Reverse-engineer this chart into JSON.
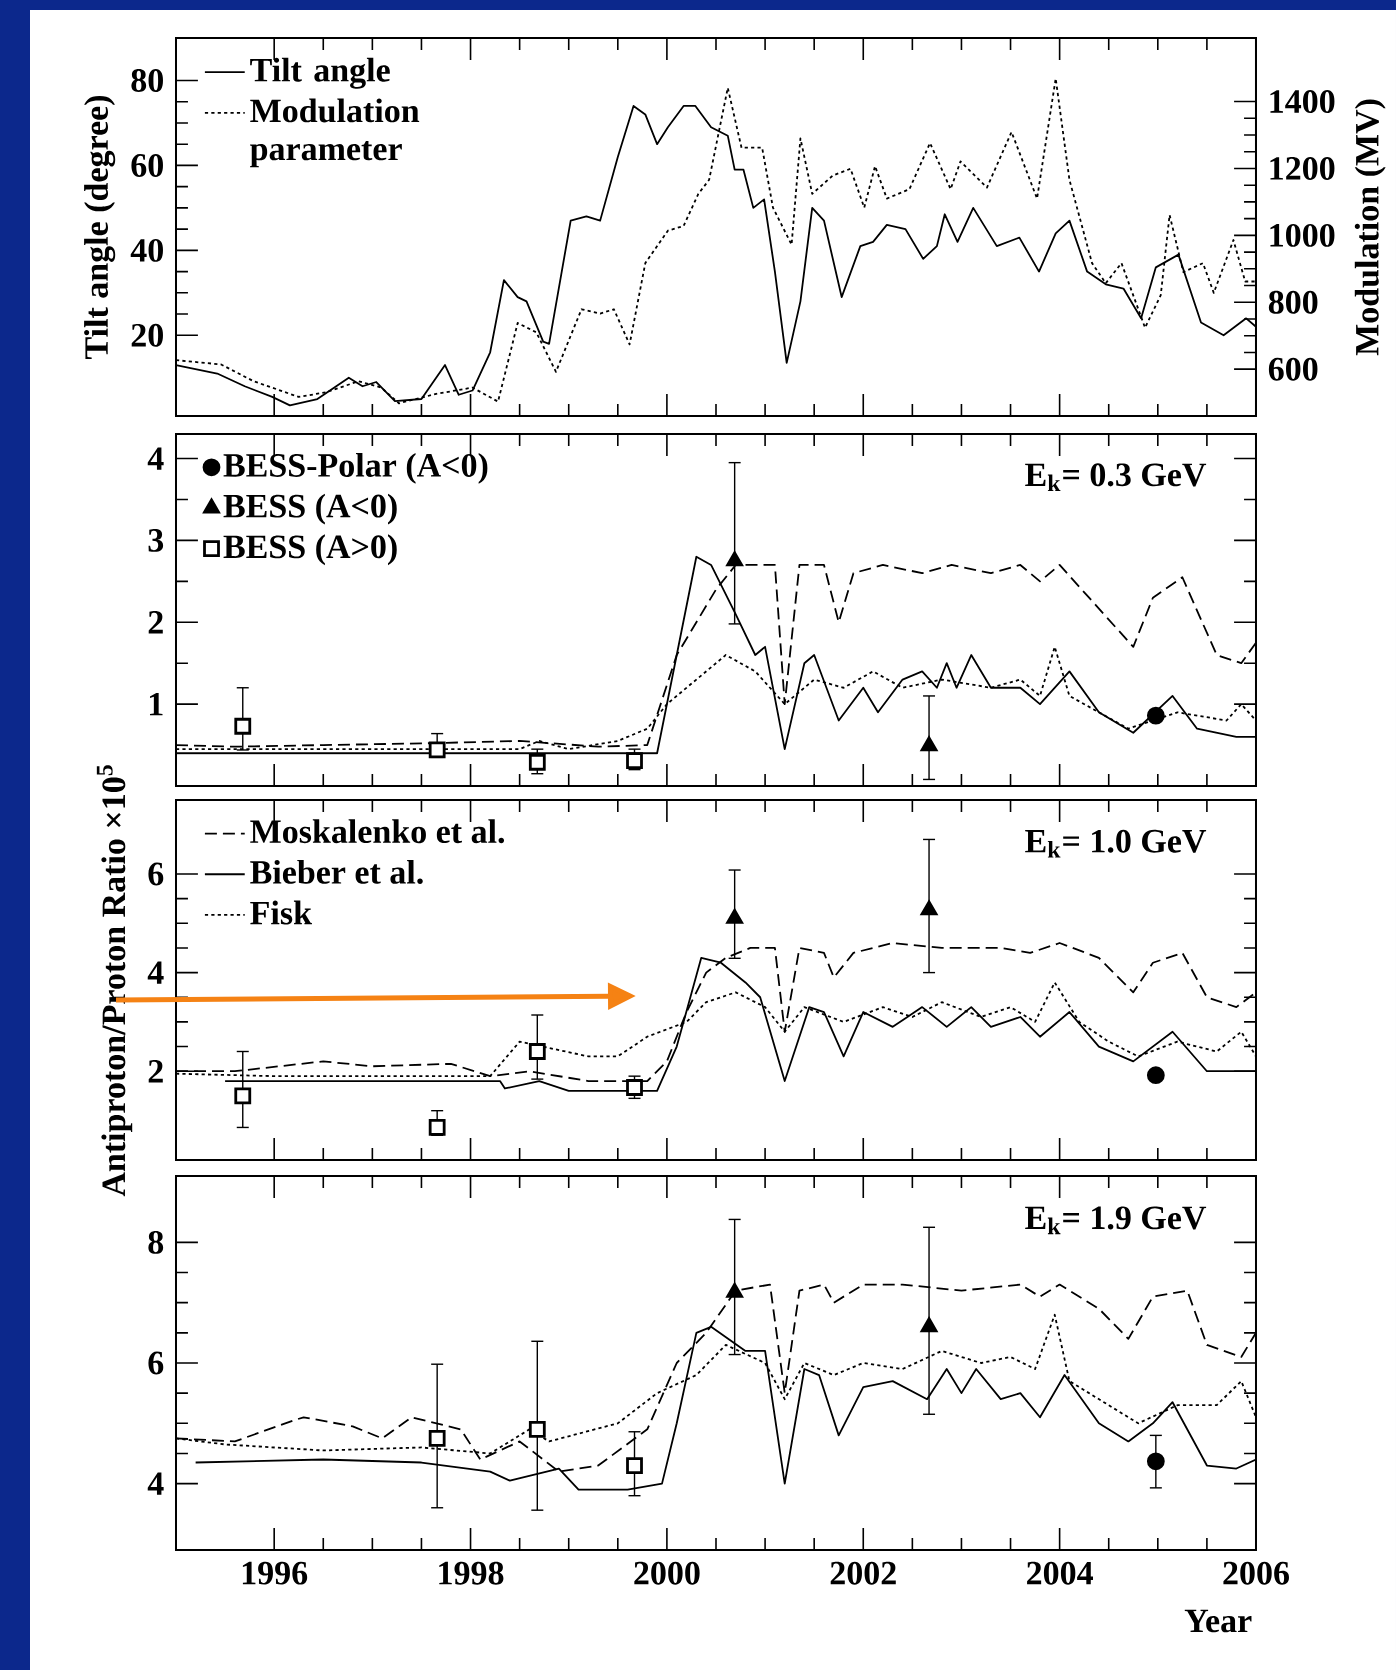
{
  "chart_data": [
    {
      "type": "line",
      "ylabel": "Tilt angle (degree)",
      "y2label": "Modulation (MV)",
      "xlim": [
        1995,
        2006
      ],
      "xticks": [
        1996,
        1998,
        2000,
        2002,
        2004,
        2006
      ],
      "ylim": [
        1,
        90
      ],
      "yticks": [
        20,
        40,
        60,
        80
      ],
      "y2lim": [
        460,
        1590
      ],
      "y2ticks": [
        600,
        800,
        1000,
        1200,
        1400
      ],
      "tick_labels": "y",
      "legend": "top left",
      "series": [
        {
          "name": "Tilt angle",
          "line_style": "solid",
          "color": "#000000",
          "x": [
            1995.0,
            1995.42,
            1995.7,
            1995.98,
            1996.16,
            1996.44,
            1996.76,
            1996.9,
            1997.04,
            1997.23,
            1997.5,
            1997.74,
            1997.88,
            1998.02,
            1998.2,
            1998.34,
            1998.48,
            1998.57,
            1998.74,
            1998.8,
            1999.02,
            1999.18,
            1999.32,
            1999.5,
            1999.66,
            1999.78,
            1999.9,
            2000.01,
            2000.17,
            2000.29,
            2000.45,
            2000.62,
            2000.69,
            2000.78,
            2000.88,
            2000.99,
            2001.1,
            2001.22,
            2001.36,
            2001.48,
            2001.6,
            2001.78,
            2001.97,
            2002.1,
            2002.24,
            2002.43,
            2002.61,
            2002.75,
            2002.83,
            2002.96,
            2003.12,
            2003.36,
            2003.59,
            2003.79,
            2003.96,
            2004.1,
            2004.28,
            2004.47,
            2004.65,
            2004.83,
            2004.98,
            2005.21,
            2005.44,
            2005.67,
            2005.9,
            2006.0
          ],
          "values": [
            13,
            11,
            8,
            5.5,
            3.5,
            5,
            10,
            8,
            9,
            4.5,
            5,
            13,
            6,
            7,
            16,
            33,
            29,
            28,
            18.5,
            18,
            47,
            48,
            47,
            62,
            74,
            72,
            65,
            69,
            74,
            74,
            69,
            67,
            59,
            59,
            50,
            52,
            35,
            13.5,
            28,
            50,
            47,
            29,
            41,
            42,
            46,
            45,
            38,
            41,
            48.5,
            42,
            50,
            41,
            43,
            35,
            44,
            47,
            35,
            32,
            31,
            24,
            36,
            39,
            23,
            20,
            24,
            22
          ]
        },
        {
          "name": "Modulation parameter",
          "axis": "y2",
          "line_style": "dotted",
          "color": "#000000",
          "x": [
            1995.0,
            1995.46,
            1995.79,
            1996.25,
            1996.53,
            1996.86,
            1997.09,
            1997.27,
            1997.65,
            1998.02,
            1998.28,
            1998.48,
            1998.67,
            1998.87,
            1999.13,
            1999.32,
            1999.46,
            1999.62,
            1999.78,
            2000.01,
            2000.17,
            2000.32,
            2000.43,
            2000.62,
            2000.76,
            2000.97,
            2001.08,
            2001.27,
            2001.36,
            2001.48,
            2001.69,
            2001.87,
            2002.01,
            2002.12,
            2002.24,
            2002.47,
            2002.68,
            2002.89,
            2002.99,
            2003.26,
            2003.51,
            2003.77,
            2003.96,
            2004.1,
            2004.33,
            2004.47,
            2004.63,
            2004.87,
            2005.03,
            2005.12,
            2005.26,
            2005.46,
            2005.57,
            2005.77,
            2005.89,
            2006.0
          ],
          "values": [
            627,
            614,
            564,
            517,
            531,
            564,
            545,
            498,
            526,
            545,
            503,
            738,
            710,
            592,
            779,
            766,
            779,
            674,
            917,
            1014,
            1028,
            1124,
            1166,
            1441,
            1262,
            1262,
            1083,
            972,
            1290,
            1124,
            1179,
            1199,
            1083,
            1207,
            1110,
            1138,
            1276,
            1138,
            1221,
            1143,
            1309,
            1110,
            1469,
            1166,
            917,
            857,
            917,
            724,
            821,
            1061,
            890,
            917,
            828,
            986,
            862,
            862
          ]
        }
      ]
    },
    {
      "type": "line",
      "annotations": [
        "E$_{k}$= 0.3 GeV"
      ],
      "xlim": [
        1995,
        2006
      ],
      "xticks": [
        1996,
        1998,
        2000,
        2002,
        2004,
        2006
      ],
      "ylim": [
        0,
        4.3
      ],
      "yticks": [
        1,
        2,
        3,
        4
      ],
      "tick_labels": "y",
      "legend": "top left",
      "series": [
        {
          "line_style": "dashed",
          "color": "#000000",
          "x": [
            1995,
            1995.6,
            1996.5,
            1997.5,
            1998.5,
            1999.3,
            1999.8,
            2000.1,
            2000.5,
            2000.7,
            2001.1,
            2001.2,
            2001.35,
            2001.6,
            2001.75,
            2001.9,
            2002.2,
            2002.6,
            2002.9,
            2003.3,
            2003.6,
            2003.8,
            2004.0,
            2004.3,
            2004.75,
            2004.95,
            2005.25,
            2005.6,
            2005.85,
            2006
          ],
          "values": [
            0.5,
            0.48,
            0.5,
            0.52,
            0.55,
            0.48,
            0.5,
            1.6,
            2.4,
            2.7,
            2.7,
            1.0,
            2.7,
            2.7,
            2.0,
            2.6,
            2.7,
            2.6,
            2.7,
            2.6,
            2.7,
            2.5,
            2.7,
            2.3,
            1.7,
            2.3,
            2.55,
            1.6,
            1.5,
            1.75
          ]
        },
        {
          "line_style": "solid",
          "color": "#000000",
          "x": [
            1995.0,
            1999.9,
            2000.3,
            2000.45,
            2000.7,
            2000.9,
            2001.0,
            2001.2,
            2001.4,
            2001.5,
            2001.75,
            2002.0,
            2002.15,
            2002.4,
            2002.6,
            2002.75,
            2002.85,
            2002.95,
            2003.1,
            2003.3,
            2003.6,
            2003.8,
            2004.1,
            2004.4,
            2004.75,
            2005.15,
            2005.4,
            2005.8,
            2006
          ],
          "values": [
            0.4,
            0.4,
            2.8,
            2.7,
            2.1,
            1.6,
            1.7,
            0.45,
            1.5,
            1.6,
            0.8,
            1.2,
            0.9,
            1.3,
            1.4,
            1.2,
            1.5,
            1.2,
            1.6,
            1.2,
            1.2,
            1.0,
            1.4,
            0.9,
            0.65,
            1.1,
            0.7,
            0.6,
            0.6
          ]
        },
        {
          "line_style": "dotted",
          "color": "#000000",
          "x": [
            1995,
            1998.5,
            1998.7,
            1999.0,
            1999.5,
            1999.8,
            2000.0,
            2000.3,
            2000.6,
            2000.9,
            2001.2,
            2001.5,
            2001.8,
            2002.1,
            2002.4,
            2002.8,
            2003.3,
            2003.6,
            2003.8,
            2003.95,
            2004.1,
            2004.4,
            2004.7,
            2005.2,
            2005.7,
            2005.85,
            2006
          ],
          "values": [
            0.45,
            0.45,
            0.55,
            0.45,
            0.55,
            0.7,
            1.0,
            1.3,
            1.6,
            1.4,
            1.0,
            1.3,
            1.2,
            1.4,
            1.2,
            1.3,
            1.2,
            1.3,
            1.1,
            1.7,
            1.1,
            0.9,
            0.7,
            0.9,
            0.8,
            1.0,
            0.8
          ]
        },
        {
          "name": "BESS-Polar (A<0)",
          "type": "scatter",
          "marker": "circle",
          "color": "#000000",
          "x": [
            2004.98
          ],
          "values": [
            0.86
          ]
        },
        {
          "name": "BESS (A<0)",
          "type": "scatter",
          "marker": "triangle",
          "color": "#000000",
          "x": [
            2000.69,
            2002.67
          ],
          "values": [
            2.75,
            0.49
          ],
          "errors": [
            [
              1.98,
              3.95
            ],
            [
              0.08,
              1.1
            ]
          ]
        },
        {
          "name": "BESS (A>0)",
          "type": "scatter",
          "marker": "square",
          "color": "#000000",
          "x": [
            1995.68,
            1997.66,
            1998.68,
            1999.67
          ],
          "values": [
            0.73,
            0.44,
            0.29,
            0.31
          ],
          "errors": [
            [
              0.44,
              1.2
            ],
            [
              0.35,
              0.64
            ],
            [
              0.15,
              0.45
            ],
            [
              0.2,
              0.45
            ]
          ]
        }
      ]
    },
    {
      "type": "line",
      "ylabel": "Antiproton/Proton Ratio ×10$^{5}$",
      "annotations": [
        "E$_{k}$= 1.0 GeV"
      ],
      "xlim": [
        1995,
        2006
      ],
      "xticks": [
        1996,
        1998,
        2000,
        2002,
        2004,
        2006
      ],
      "ylim": [
        0.2,
        7.5
      ],
      "yticks": [
        2,
        4,
        6
      ],
      "tick_labels": "y",
      "legend": "top left",
      "series": [
        {
          "name": "Moskalenko et al.",
          "line_style": "dashed",
          "color": "#000000",
          "x": [
            1995,
            1995.6,
            1996.5,
            1997,
            1997.8,
            1998.2,
            1998.6,
            1999.2,
            1999.8,
            2000.0,
            2000.2,
            2000.4,
            2000.6,
            2000.85,
            2001.1,
            2001.2,
            2001.35,
            2001.6,
            2001.7,
            2001.9,
            2002.3,
            2002.8,
            2003.4,
            2003.7,
            2004.0,
            2004.4,
            2004.75,
            2004.95,
            2005.25,
            2005.5,
            2005.8,
            2006
          ],
          "values": [
            2.0,
            2.0,
            2.2,
            2.1,
            2.15,
            1.9,
            2.0,
            1.8,
            1.8,
            2.2,
            3.2,
            4.0,
            4.3,
            4.5,
            4.5,
            2.8,
            4.5,
            4.4,
            3.9,
            4.4,
            4.6,
            4.5,
            4.5,
            4.4,
            4.6,
            4.3,
            3.6,
            4.2,
            4.4,
            3.5,
            3.3,
            3.6
          ]
        },
        {
          "name": "Bieber et al.",
          "line_style": "solid",
          "color": "#000000",
          "x": [
            1995.5,
            1998.3,
            1998.35,
            1998.7,
            1999.0,
            1999.9,
            2000.1,
            2000.35,
            2000.55,
            2000.8,
            2000.95,
            2001.2,
            2001.45,
            2001.6,
            2001.8,
            2002.0,
            2002.3,
            2002.6,
            2002.85,
            2003.1,
            2003.3,
            2003.6,
            2003.8,
            2004.1,
            2004.4,
            2004.75,
            2005.15,
            2005.5,
            2006
          ],
          "values": [
            1.8,
            1.8,
            1.65,
            1.8,
            1.6,
            1.6,
            2.5,
            4.3,
            4.2,
            3.8,
            3.5,
            1.8,
            3.3,
            3.2,
            2.3,
            3.2,
            2.9,
            3.3,
            2.9,
            3.3,
            2.9,
            3.1,
            2.7,
            3.2,
            2.5,
            2.2,
            2.8,
            2.0,
            2.0
          ]
        },
        {
          "name": "Fisk",
          "line_style": "dotted",
          "color": "#000000",
          "x": [
            1995,
            1996,
            1998.2,
            1998.5,
            1999.2,
            1999.5,
            1999.8,
            2000.2,
            2000.4,
            2000.7,
            2001.0,
            2001.2,
            2001.4,
            2001.8,
            2002.2,
            2002.5,
            2002.8,
            2003.2,
            2003.5,
            2003.75,
            2003.95,
            2004.2,
            2004.5,
            2004.8,
            2005.2,
            2005.6,
            2005.85,
            2006
          ],
          "values": [
            1.95,
            1.9,
            1.9,
            2.6,
            2.3,
            2.3,
            2.7,
            3.0,
            3.4,
            3.6,
            3.3,
            2.8,
            3.3,
            3.0,
            3.3,
            3.1,
            3.4,
            3.1,
            3.3,
            3.0,
            3.8,
            3.0,
            2.6,
            2.3,
            2.6,
            2.4,
            2.8,
            2.3
          ]
        },
        {
          "type": "scatter",
          "marker": "circle",
          "color": "#000000",
          "x": [
            2004.98
          ],
          "values": [
            1.92
          ]
        },
        {
          "type": "scatter",
          "marker": "triangle",
          "color": "#000000",
          "x": [
            2000.69,
            2002.67
          ],
          "values": [
            5.1,
            5.27
          ],
          "errors": [
            [
              4.29,
              6.08
            ],
            [
              4.0,
              6.7
            ]
          ]
        },
        {
          "type": "scatter",
          "marker": "square",
          "color": "#000000",
          "x": [
            1995.68,
            1997.66,
            1998.68,
            1999.67
          ],
          "values": [
            1.5,
            0.86,
            2.4,
            1.67
          ],
          "errors": [
            [
              0.86,
              2.4
            ],
            [
              0.7,
              1.2
            ],
            [
              1.84,
              3.14
            ],
            [
              1.45,
              1.9
            ]
          ]
        }
      ]
    },
    {
      "type": "line",
      "xlabel": "Year",
      "annotations": [
        "E$_{k}$= 1.9 GeV"
      ],
      "xlim": [
        1995,
        2006
      ],
      "xticks": [
        1996,
        1998,
        2000,
        2002,
        2004,
        2006
      ],
      "ylim": [
        2.9,
        9.1
      ],
      "yticks": [
        4,
        6,
        8
      ],
      "series": [
        {
          "line_style": "dashed",
          "color": "#000000",
          "x": [
            1995,
            1995.6,
            1996.2,
            1996.3,
            1996.8,
            1997.1,
            1997.4,
            1997.9,
            1998.1,
            1998.5,
            1998.9,
            1999.3,
            1999.8,
            2000.1,
            2000.4,
            2000.7,
            2001.05,
            2001.2,
            2001.35,
            2001.6,
            2001.7,
            2002.0,
            2002.4,
            2003.0,
            2003.6,
            2003.8,
            2004.0,
            2004.4,
            2004.7,
            2004.95,
            2005.3,
            2005.5,
            2005.85,
            2006
          ],
          "values": [
            4.75,
            4.7,
            5.05,
            5.1,
            4.95,
            4.75,
            5.1,
            4.9,
            4.4,
            4.7,
            4.2,
            4.3,
            4.9,
            6.0,
            6.5,
            7.2,
            7.3,
            5.5,
            7.2,
            7.3,
            7.0,
            7.3,
            7.3,
            7.2,
            7.3,
            7.1,
            7.3,
            6.9,
            6.4,
            7.1,
            7.2,
            6.3,
            6.1,
            6.5
          ]
        },
        {
          "line_style": "solid",
          "color": "#000000",
          "x": [
            1995.2,
            1996.5,
            1997.5,
            1998.2,
            1998.4,
            1998.9,
            1999.1,
            1999.6,
            1999.95,
            2000.1,
            2000.3,
            2000.45,
            2000.8,
            2001.0,
            2001.2,
            2001.4,
            2001.55,
            2001.75,
            2002.0,
            2002.3,
            2002.65,
            2002.85,
            2003.0,
            2003.15,
            2003.4,
            2003.6,
            2003.8,
            2004.05,
            2004.4,
            2004.7,
            2004.95,
            2005.15,
            2005.5,
            2005.8,
            2006
          ],
          "values": [
            4.35,
            4.4,
            4.35,
            4.2,
            4.05,
            4.25,
            3.9,
            3.9,
            4.0,
            5.0,
            6.5,
            6.6,
            6.2,
            6.2,
            4.0,
            5.9,
            5.8,
            4.8,
            5.6,
            5.7,
            5.4,
            5.9,
            5.5,
            5.9,
            5.4,
            5.5,
            5.1,
            5.8,
            5.0,
            4.7,
            5.0,
            5.35,
            4.3,
            4.25,
            4.4
          ]
        },
        {
          "line_style": "dotted",
          "color": "#000000",
          "x": [
            1995,
            1995.5,
            1996.5,
            1997.5,
            1998.2,
            1998.6,
            1998.8,
            1999.5,
            1999.9,
            2000.3,
            2000.6,
            2001.0,
            2001.2,
            2001.4,
            2001.7,
            2002.0,
            2002.4,
            2002.8,
            2003.2,
            2003.5,
            2003.75,
            2003.95,
            2004.1,
            2004.5,
            2004.8,
            2005.2,
            2005.6,
            2005.85,
            2006
          ],
          "values": [
            4.75,
            4.65,
            4.55,
            4.6,
            4.5,
            4.9,
            4.7,
            5.0,
            5.5,
            5.8,
            6.3,
            6.0,
            5.4,
            6.0,
            5.8,
            6.0,
            5.9,
            6.2,
            6.0,
            6.1,
            5.9,
            6.8,
            5.7,
            5.3,
            5.0,
            5.3,
            5.3,
            5.7,
            5.1
          ]
        },
        {
          "type": "scatter",
          "marker": "circle",
          "color": "#000000",
          "x": [
            2004.98
          ],
          "values": [
            4.37
          ],
          "errors": [
            [
              3.93,
              4.8
            ]
          ]
        },
        {
          "type": "scatter",
          "marker": "triangle",
          "color": "#000000",
          "x": [
            2000.69,
            2002.67
          ],
          "values": [
            7.17,
            6.6
          ],
          "errors": [
            [
              6.14,
              8.38
            ],
            [
              5.15,
              8.25
            ]
          ]
        },
        {
          "type": "scatter",
          "marker": "square",
          "color": "#000000",
          "x": [
            1997.66,
            1998.68,
            1999.67
          ],
          "values": [
            4.75,
            4.9,
            4.3
          ],
          "errors": [
            [
              3.6,
              5.98
            ],
            [
              3.56,
              6.36
            ],
            [
              3.8,
              4.86
            ]
          ]
        }
      ]
    }
  ]
}
